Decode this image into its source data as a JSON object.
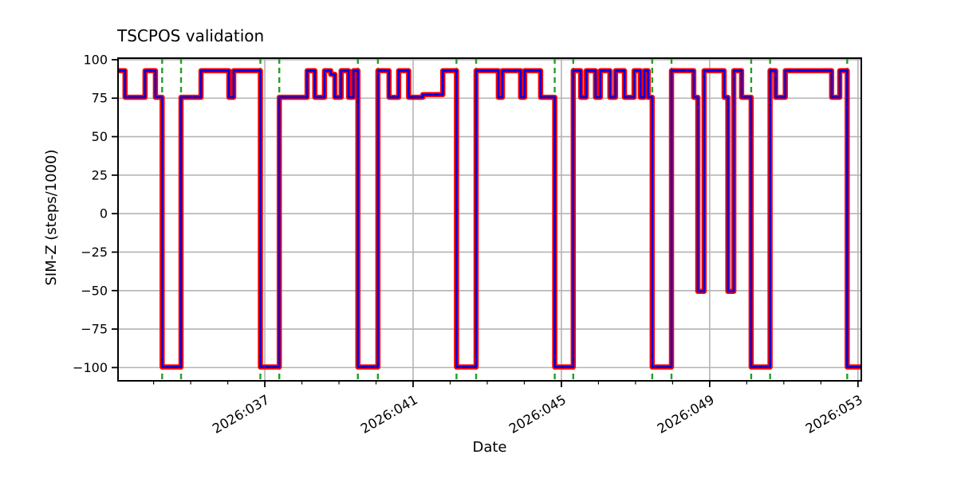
{
  "chart_data": {
    "type": "line",
    "step_mode": "post",
    "title": "TSCPOS validation",
    "xlabel": "Date",
    "ylabel": "SIM-Z (steps/1000)",
    "grid": true,
    "legend_position": "none",
    "xlim_days": [
      33.04,
      53.09
    ],
    "ylim": [
      -108.6,
      101.0
    ],
    "x_major_ticks": [
      {
        "day": 37,
        "label": "2026:037"
      },
      {
        "day": 41,
        "label": "2026:041"
      },
      {
        "day": 45,
        "label": "2026:045"
      },
      {
        "day": 49,
        "label": "2026:049"
      },
      {
        "day": 53,
        "label": "2026:053"
      }
    ],
    "x_minor_tick_days": [
      34,
      35,
      36,
      38,
      39,
      40,
      42,
      43,
      44,
      46,
      47,
      48,
      50,
      51,
      52
    ],
    "y_ticks": [
      {
        "v": 100,
        "label": "100"
      },
      {
        "v": 75,
        "label": "75"
      },
      {
        "v": 50,
        "label": "50"
      },
      {
        "v": 25,
        "label": "25"
      },
      {
        "v": 0,
        "label": "0"
      },
      {
        "v": -25,
        "label": "−25"
      },
      {
        "v": -50,
        "label": "−50"
      },
      {
        "v": -75,
        "label": "−75"
      },
      {
        "v": -100,
        "label": "−100"
      }
    ],
    "series": [
      {
        "name": "red-series",
        "color": "#ff0000",
        "linewidth": 6.5
      },
      {
        "name": "blue-series",
        "color": "#0000e0",
        "linewidth": 2.7
      }
    ],
    "steps": [
      [
        33.04,
        92.9
      ],
      [
        33.23,
        75.6
      ],
      [
        33.77,
        92.9
      ],
      [
        34.05,
        75.6
      ],
      [
        34.23,
        -99.6
      ],
      [
        34.74,
        75.6
      ],
      [
        35.28,
        92.9
      ],
      [
        36.03,
        75.6
      ],
      [
        36.16,
        92.9
      ],
      [
        36.88,
        -99.6
      ],
      [
        37.39,
        75.6
      ],
      [
        38.14,
        92.9
      ],
      [
        38.35,
        75.6
      ],
      [
        38.61,
        92.9
      ],
      [
        38.78,
        90.5
      ],
      [
        38.89,
        75.6
      ],
      [
        39.06,
        92.9
      ],
      [
        39.26,
        75.6
      ],
      [
        39.39,
        92.9
      ],
      [
        39.51,
        -99.6
      ],
      [
        40.05,
        92.9
      ],
      [
        40.35,
        75.6
      ],
      [
        40.61,
        92.9
      ],
      [
        40.88,
        75.6
      ],
      [
        41.26,
        77.3
      ],
      [
        41.8,
        92.9
      ],
      [
        42.17,
        -99.6
      ],
      [
        42.7,
        92.9
      ],
      [
        43.3,
        75.6
      ],
      [
        43.41,
        92.9
      ],
      [
        43.9,
        75.6
      ],
      [
        44.01,
        92.9
      ],
      [
        44.44,
        75.6
      ],
      [
        44.82,
        -99.6
      ],
      [
        45.32,
        92.9
      ],
      [
        45.52,
        75.6
      ],
      [
        45.67,
        92.9
      ],
      [
        45.92,
        75.6
      ],
      [
        46.05,
        92.9
      ],
      [
        46.31,
        75.6
      ],
      [
        46.46,
        92.9
      ],
      [
        46.7,
        75.6
      ],
      [
        46.96,
        92.9
      ],
      [
        47.13,
        75.6
      ],
      [
        47.24,
        92.9
      ],
      [
        47.34,
        75.6
      ],
      [
        47.45,
        -99.6
      ],
      [
        47.97,
        92.9
      ],
      [
        48.57,
        75.6
      ],
      [
        48.68,
        -50.5
      ],
      [
        48.85,
        92.9
      ],
      [
        49.39,
        75.6
      ],
      [
        49.49,
        -50.5
      ],
      [
        49.65,
        92.9
      ],
      [
        49.86,
        75.6
      ],
      [
        50.12,
        -99.6
      ],
      [
        50.63,
        92.9
      ],
      [
        50.78,
        75.6
      ],
      [
        51.04,
        92.9
      ],
      [
        52.29,
        75.6
      ],
      [
        52.51,
        92.9
      ],
      [
        52.71,
        -99.6
      ]
    ],
    "x_end_day": 53.09,
    "event_lines": {
      "color": "#22a022",
      "style": "dashed",
      "days": [
        34.23,
        34.74,
        36.88,
        37.39,
        39.51,
        40.05,
        42.17,
        42.7,
        44.82,
        45.32,
        47.45,
        47.97,
        50.12,
        50.63,
        52.71
      ]
    },
    "colors": {
      "grid": "#b4b4b4",
      "frame": "#000000",
      "text": "#000000",
      "background": "#ffffff"
    }
  }
}
